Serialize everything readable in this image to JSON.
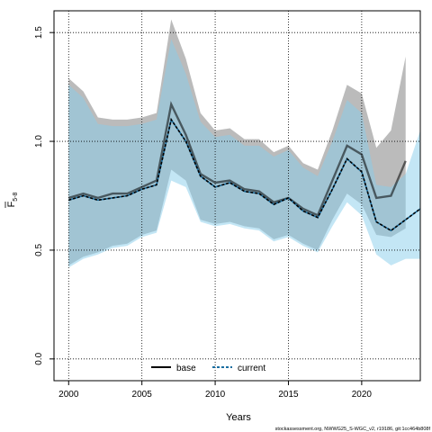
{
  "chart_data": {
    "type": "line",
    "xlabel": "Years",
    "ylabel_main": "F",
    "ylabel_sub": "5-8",
    "xlim": [
      1999,
      2024
    ],
    "ylim": [
      -0.1,
      1.6
    ],
    "x_ticks": [
      2000,
      2005,
      2010,
      2015,
      2020
    ],
    "y_ticks": [
      0.0,
      0.5,
      1.0,
      1.5
    ],
    "y_tick_labels": [
      "0.0",
      "0.5",
      "1.0",
      "1.5"
    ],
    "grid": true,
    "legend_position": "bottom-center",
    "caption": "stockassessment.org, NWWG25_S-WGC_v2, r19186, git:1cc464b808f",
    "colors": {
      "base_band": "#9e9e9e",
      "current_band": "#87ceeb",
      "base_line": "#000000",
      "current_line": "#1a6ea0"
    },
    "series": [
      {
        "name": "base",
        "x": [
          2000,
          2001,
          2002,
          2003,
          2004,
          2005,
          2006,
          2007,
          2008,
          2009,
          2010,
          2011,
          2012,
          2013,
          2014,
          2015,
          2016,
          2017,
          2018,
          2019,
          2020,
          2021,
          2022,
          2023
        ],
        "values": [
          0.74,
          0.76,
          0.74,
          0.76,
          0.76,
          0.79,
          0.82,
          1.17,
          1.03,
          0.85,
          0.81,
          0.82,
          0.78,
          0.77,
          0.72,
          0.74,
          0.69,
          0.66,
          0.82,
          0.98,
          0.94,
          0.74,
          0.75,
          0.91
        ],
        "lower": [
          0.43,
          0.47,
          0.49,
          0.52,
          0.53,
          0.57,
          0.59,
          0.87,
          0.82,
          0.64,
          0.62,
          0.63,
          0.61,
          0.6,
          0.55,
          0.57,
          0.53,
          0.5,
          0.64,
          0.76,
          0.71,
          0.57,
          0.56,
          0.6
        ],
        "upper": [
          1.29,
          1.23,
          1.11,
          1.1,
          1.1,
          1.11,
          1.13,
          1.56,
          1.38,
          1.13,
          1.05,
          1.06,
          1.01,
          1.01,
          0.95,
          0.98,
          0.9,
          0.87,
          1.05,
          1.26,
          1.22,
          0.97,
          1.05,
          1.39
        ]
      },
      {
        "name": "current",
        "x": [
          2000,
          2001,
          2002,
          2003,
          2004,
          2005,
          2006,
          2007,
          2008,
          2009,
          2010,
          2011,
          2012,
          2013,
          2014,
          2015,
          2016,
          2017,
          2018,
          2019,
          2020,
          2021,
          2022,
          2023,
          2024
        ],
        "values": [
          0.73,
          0.75,
          0.73,
          0.74,
          0.75,
          0.78,
          0.8,
          1.1,
          1.0,
          0.84,
          0.79,
          0.81,
          0.77,
          0.76,
          0.71,
          0.74,
          0.68,
          0.65,
          0.78,
          0.92,
          0.86,
          0.63,
          0.59,
          0.64,
          0.69
        ],
        "lower": [
          0.42,
          0.46,
          0.48,
          0.51,
          0.52,
          0.56,
          0.58,
          0.82,
          0.79,
          0.63,
          0.61,
          0.62,
          0.6,
          0.59,
          0.54,
          0.56,
          0.52,
          0.49,
          0.61,
          0.72,
          0.66,
          0.48,
          0.43,
          0.46,
          0.46
        ],
        "upper": [
          1.26,
          1.2,
          1.08,
          1.07,
          1.07,
          1.08,
          1.1,
          1.47,
          1.31,
          1.09,
          1.02,
          1.03,
          0.98,
          0.98,
          0.93,
          0.96,
          0.88,
          0.84,
          1.0,
          1.19,
          1.13,
          0.8,
          0.79,
          0.85,
          1.05
        ]
      }
    ]
  }
}
